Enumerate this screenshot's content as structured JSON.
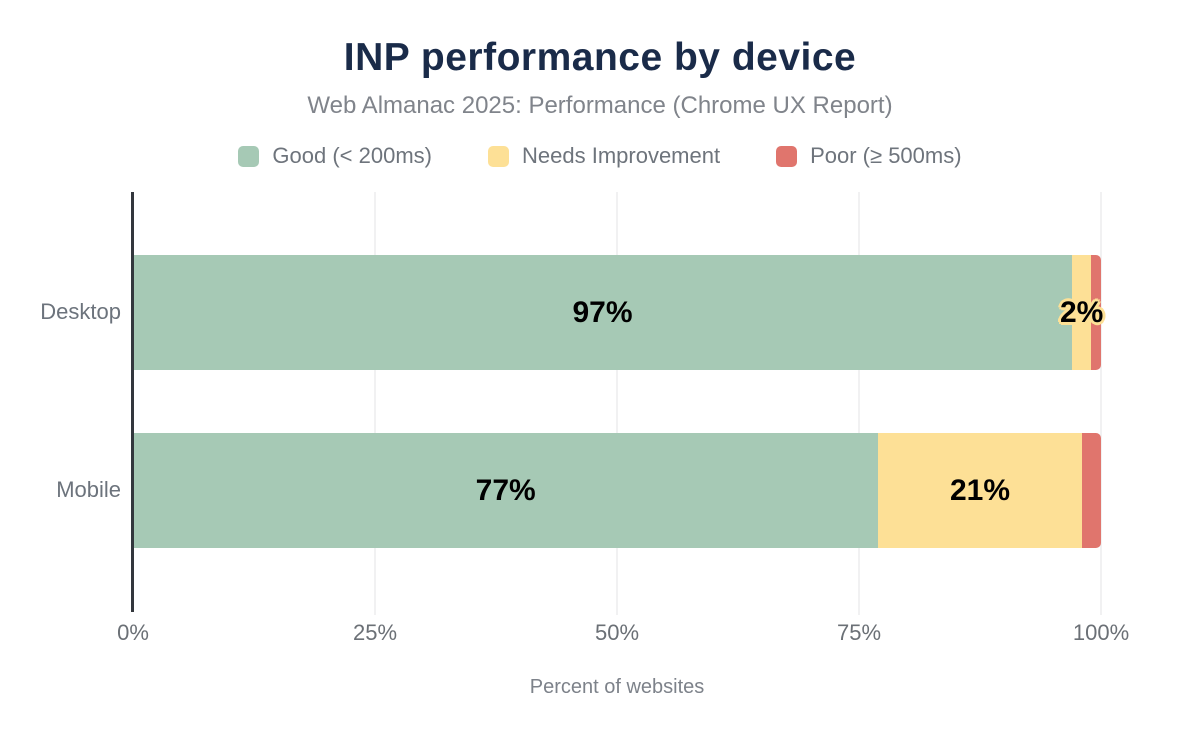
{
  "colors": {
    "title_navy": "#1a2b49",
    "good": "#a6c9b5",
    "needs_improvement": "#fde096",
    "poor": "#e0756d"
  },
  "chart_data": {
    "type": "bar",
    "orientation": "horizontal",
    "stacked": true,
    "title": "INP performance by device",
    "subtitle": "Web Almanac 2025: Performance (Chrome UX Report)",
    "xlabel": "Percent of websites",
    "xlim": [
      0,
      100
    ],
    "x_ticks": [
      "0%",
      "25%",
      "50%",
      "75%",
      "100%"
    ],
    "x_tick_values": [
      0,
      25,
      50,
      75,
      100
    ],
    "grid": true,
    "legend_position": "top",
    "categories": [
      "Desktop",
      "Mobile"
    ],
    "series": [
      {
        "name": "Good (< 200ms)",
        "color": "#a6c9b5",
        "values": [
          97,
          77
        ]
      },
      {
        "name": "Needs Improvement",
        "color": "#fde096",
        "values": [
          2,
          21
        ]
      },
      {
        "name": "Poor (≥ 500ms)",
        "color": "#e0756d",
        "values": [
          1,
          2
        ]
      }
    ],
    "bar_labels": [
      [
        "97%",
        "2%",
        ""
      ],
      [
        "77%",
        "21%",
        ""
      ]
    ]
  }
}
